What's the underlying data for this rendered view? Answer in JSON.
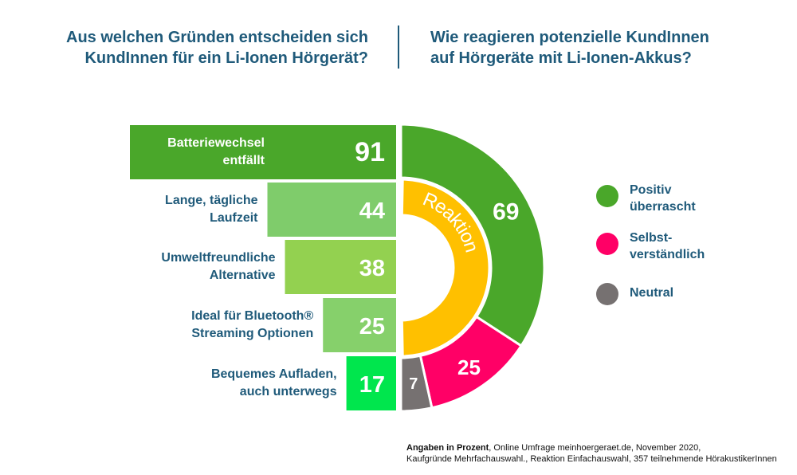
{
  "titles": {
    "left": [
      "Aus welchen Gründen entscheiden sich",
      "KundInnen für ein Li-Ionen Hörgerät?"
    ],
    "right": [
      "Wie reagieren potenzielle KundInnen",
      "auf Hörgeräte mit Li-Ionen-Akkus?"
    ]
  },
  "chart_data": [
    {
      "type": "bar",
      "orientation": "horizontal",
      "categories": [
        [
          "Batteriewechsel",
          "entfällt"
        ],
        [
          "Lange, tägliche",
          "Laufzeit"
        ],
        [
          "Umweltfreundliche",
          "Alternative"
        ],
        [
          "Ideal für Bluetooth®",
          "Streaming Optionen"
        ],
        [
          "Bequemes Aufladen,",
          "auch unterwegs"
        ]
      ],
      "values": [
        91,
        44,
        38,
        25,
        17
      ],
      "colors": [
        "#4aa72a",
        "#7fcc6b",
        "#93d150",
        "#86d06b",
        "#00e64d"
      ],
      "unit": "%"
    },
    {
      "type": "pie",
      "variant": "half-donut",
      "center_label": "Reaktion",
      "center_color": "#ffc000",
      "slices": [
        {
          "label": "Positiv überrascht",
          "value": 69,
          "color": "#4aa72a"
        },
        {
          "label": "Selbstverständlich",
          "value": 25,
          "color": "#ff0066"
        },
        {
          "label": "Neutral",
          "value": 7,
          "color": "#767171"
        }
      ]
    }
  ],
  "legend": [
    {
      "lines": [
        "Positiv",
        "überrascht"
      ],
      "color": "#4aa72a"
    },
    {
      "lines": [
        "Selbst-",
        "verständlich"
      ],
      "color": "#ff0066"
    },
    {
      "lines": [
        "Neutral"
      ],
      "color": "#767171"
    }
  ],
  "footnote": {
    "bold": "Angaben in Prozent",
    "line1_rest": ", Online Umfrage meinhoergeraet.de, November 2020,",
    "line2": "Kaufgründe Mehrfachauswahl., Reaktion Einfachauswahl, 357 teilnehmende HörakustikerInnen"
  }
}
